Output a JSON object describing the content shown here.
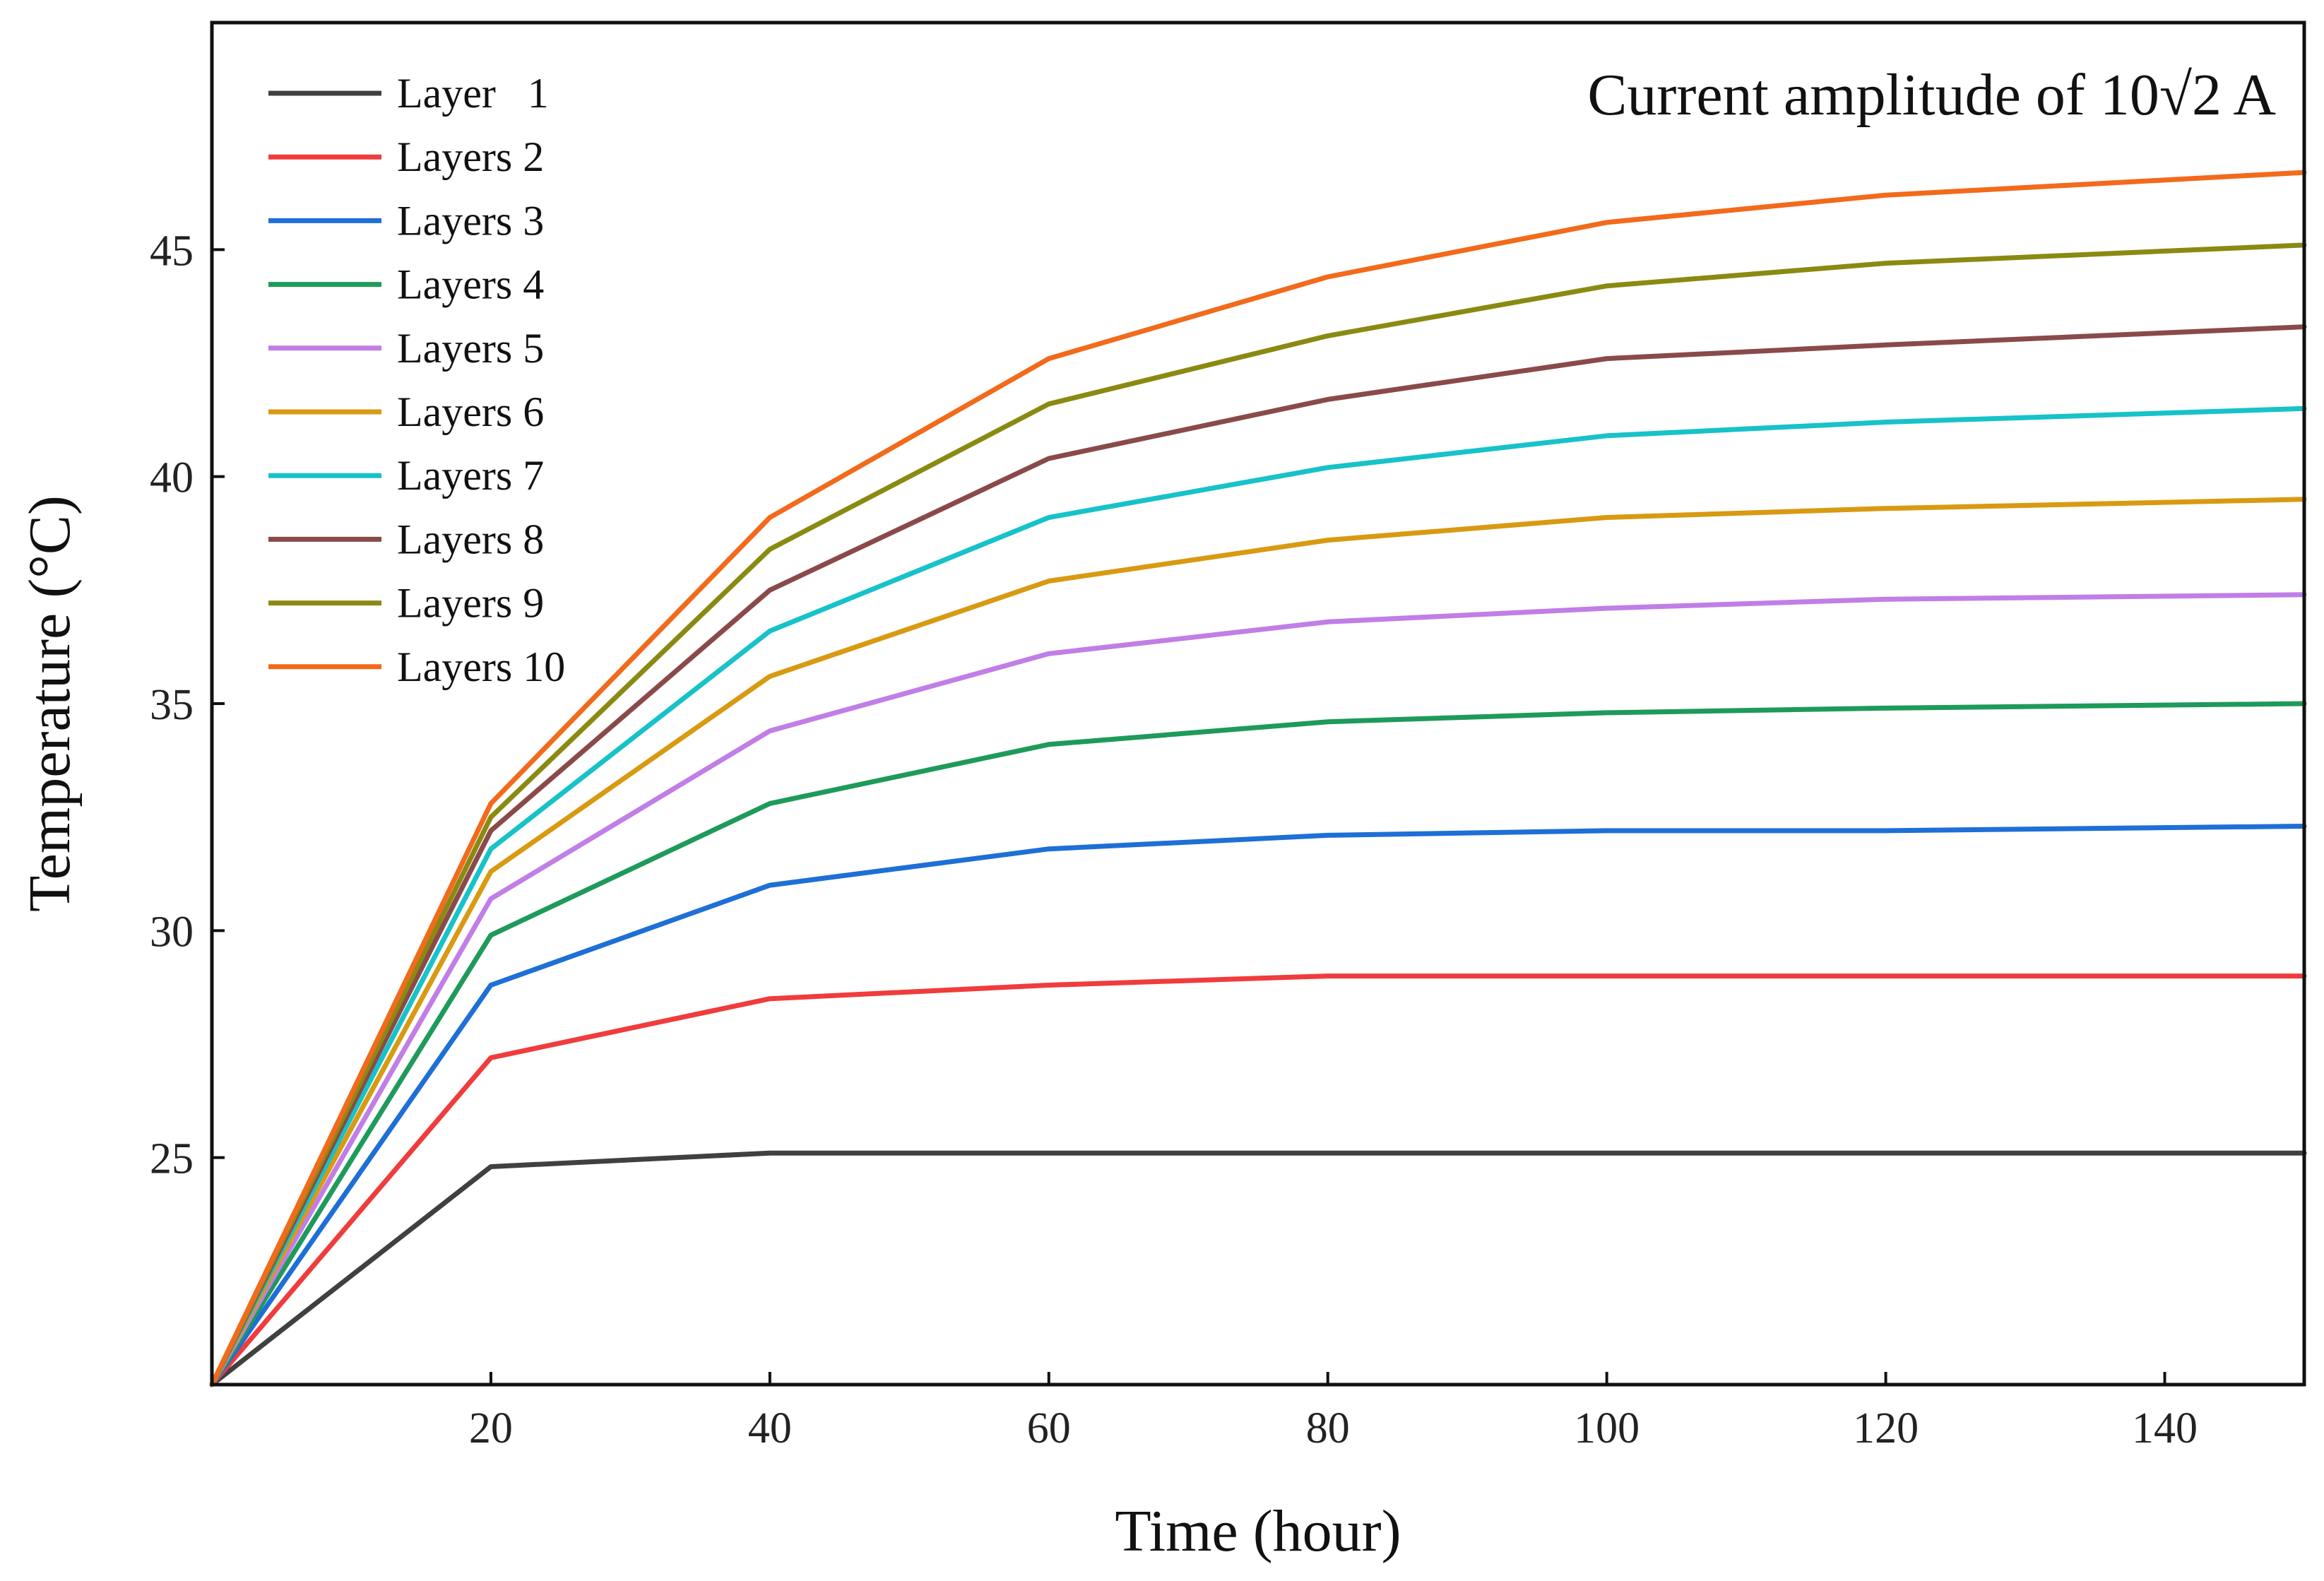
{
  "chart_data": {
    "type": "line",
    "title": "",
    "annotation": "Current amplitude of 10√2 A",
    "xlabel": "Time (hour)",
    "ylabel": "Temperature (°C)",
    "xlim": [
      0,
      150
    ],
    "ylim": [
      20,
      50
    ],
    "xticks": [
      20,
      40,
      60,
      80,
      100,
      120,
      140
    ],
    "yticks": [
      25,
      30,
      35,
      40,
      45
    ],
    "grid": false,
    "legend_position": "top-left",
    "x": [
      0,
      20,
      40,
      60,
      80,
      100,
      120,
      150
    ],
    "series": [
      {
        "name": "Layer   1",
        "color": "#404040",
        "values": [
          20.0,
          24.8,
          25.1,
          25.1,
          25.1,
          25.1,
          25.1,
          25.1
        ]
      },
      {
        "name": "Layers 2",
        "color": "#f03c3c",
        "values": [
          20.0,
          27.2,
          28.5,
          28.8,
          29.0,
          29.0,
          29.0,
          29.0
        ]
      },
      {
        "name": "Layers 3",
        "color": "#1e6fd6",
        "values": [
          20.0,
          28.8,
          31.0,
          31.8,
          32.1,
          32.2,
          32.2,
          32.3
        ]
      },
      {
        "name": "Layers 4",
        "color": "#1e9a5a",
        "values": [
          20.0,
          29.9,
          32.8,
          34.1,
          34.6,
          34.8,
          34.9,
          35.0
        ]
      },
      {
        "name": "Layers 5",
        "color": "#c07ee6",
        "values": [
          20.0,
          30.7,
          34.4,
          36.1,
          36.8,
          37.1,
          37.3,
          37.4
        ]
      },
      {
        "name": "Layers 6",
        "color": "#d89a12",
        "values": [
          20.0,
          31.3,
          35.6,
          37.7,
          38.6,
          39.1,
          39.3,
          39.5
        ]
      },
      {
        "name": "Layers 7",
        "color": "#17c2c9",
        "values": [
          20.0,
          31.8,
          36.6,
          39.1,
          40.2,
          40.9,
          41.2,
          41.5
        ]
      },
      {
        "name": "Layers 8",
        "color": "#8a4a4a",
        "values": [
          20.0,
          32.2,
          37.5,
          40.4,
          41.7,
          42.6,
          42.9,
          43.3
        ]
      },
      {
        "name": "Layers 9",
        "color": "#8a8a12",
        "values": [
          20.0,
          32.5,
          38.4,
          41.6,
          43.1,
          44.2,
          44.7,
          45.1
        ]
      },
      {
        "name": "Layers 10",
        "color": "#f26a1b",
        "values": [
          20.0,
          32.8,
          39.1,
          42.6,
          44.4,
          45.6,
          46.2,
          46.7
        ]
      }
    ]
  }
}
